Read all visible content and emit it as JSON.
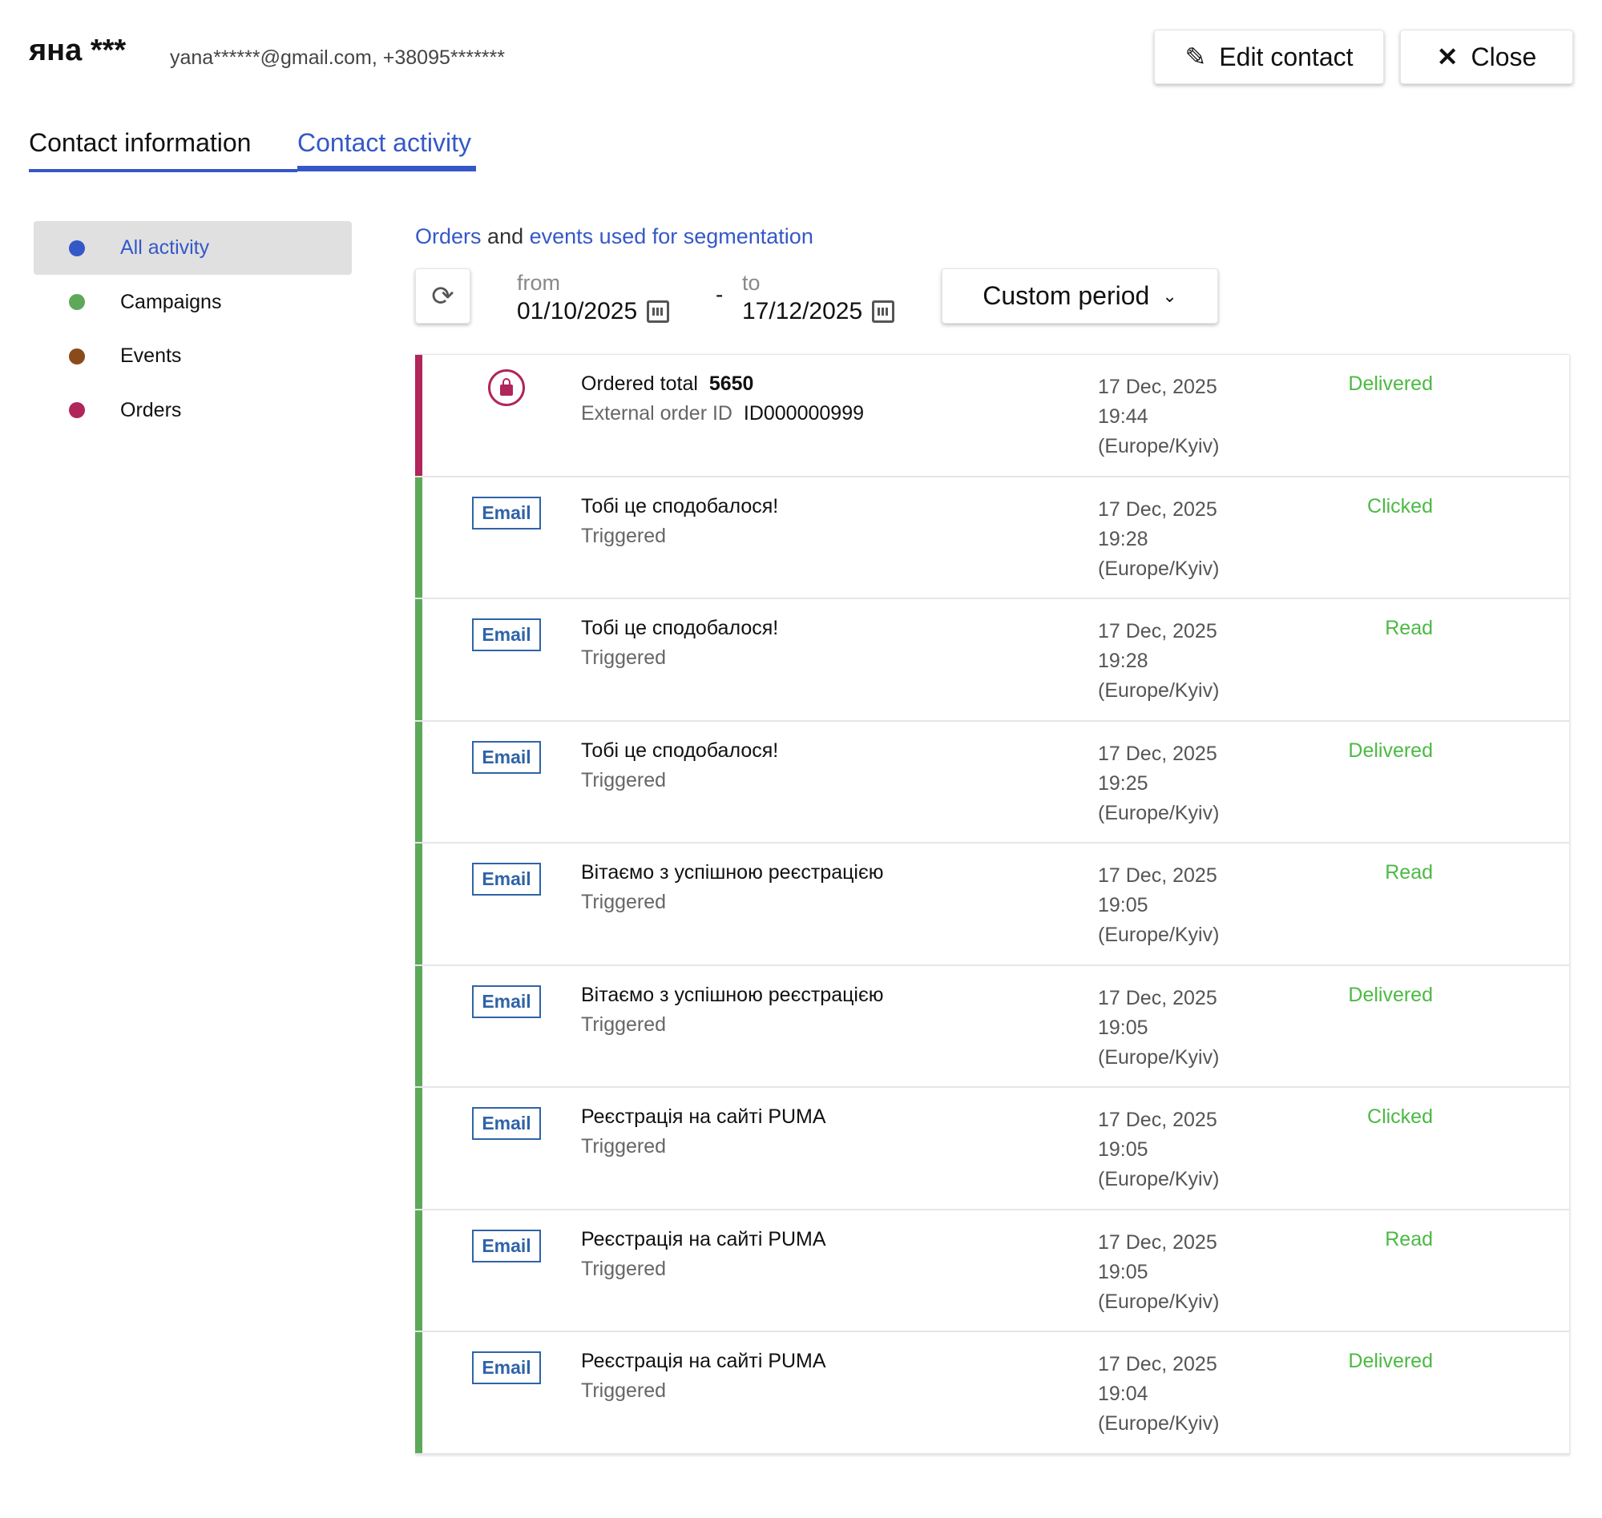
{
  "header": {
    "name": "яна ***",
    "contact": "yana******@gmail.com, +38095*******",
    "edit_label": "Edit contact",
    "close_label": "Close"
  },
  "tabs": [
    {
      "label": "Contact information"
    },
    {
      "label": "Contact activity",
      "active": true
    }
  ],
  "sidebar": {
    "items": [
      {
        "label": "All activity",
        "color": "#3558c8",
        "active": true
      },
      {
        "label": "Campaigns",
        "color": "#5ea85a"
      },
      {
        "label": "Events",
        "color": "#8a4a1c"
      },
      {
        "label": "Orders",
        "color": "#b0255a"
      }
    ]
  },
  "filter": {
    "orders_link": "Orders",
    "and": "and",
    "events_link": "events used for segmentation",
    "from_label": "from",
    "from_value": "01/10/2025",
    "to_label": "to",
    "to_value": "17/12/2025",
    "period": "Custom period"
  },
  "activity": [
    {
      "type": "order",
      "title": "Ordered total",
      "total": "5650",
      "sub": "External order ID",
      "order_id": "ID000000999",
      "date": "17 Dec, 2025",
      "time": "19:44 (Europe/Kyiv)",
      "status": "Delivered"
    },
    {
      "type": "email",
      "badge": "Email",
      "title": "Тобі це сподобалося!",
      "sub": "Triggered",
      "date": "17 Dec, 2025",
      "time": "19:28 (Europe/Kyiv)",
      "status": "Clicked"
    },
    {
      "type": "email",
      "badge": "Email",
      "title": "Тобі це сподобалося!",
      "sub": "Triggered",
      "date": "17 Dec, 2025",
      "time": "19:28 (Europe/Kyiv)",
      "status": "Read"
    },
    {
      "type": "email",
      "badge": "Email",
      "title": "Тобі це сподобалося!",
      "sub": "Triggered",
      "date": "17 Dec, 2025",
      "time": "19:25 (Europe/Kyiv)",
      "status": "Delivered"
    },
    {
      "type": "email",
      "badge": "Email",
      "title": "Вітаємо з успішною реєстрацією",
      "sub": "Triggered",
      "date": "17 Dec, 2025",
      "time": "19:05 (Europe/Kyiv)",
      "status": "Read"
    },
    {
      "type": "email",
      "badge": "Email",
      "title": "Вітаємо з успішною реєстрацією",
      "sub": "Triggered",
      "date": "17 Dec, 2025",
      "time": "19:05 (Europe/Kyiv)",
      "status": "Delivered"
    },
    {
      "type": "email",
      "badge": "Email",
      "title": "Реєстрація на сайті PUMA",
      "sub": "Triggered",
      "date": "17 Dec, 2025",
      "time": "19:05 (Europe/Kyiv)",
      "status": "Clicked"
    },
    {
      "type": "email",
      "badge": "Email",
      "title": "Реєстрація на сайті PUMA",
      "sub": "Triggered",
      "date": "17 Dec, 2025",
      "time": "19:05 (Europe/Kyiv)",
      "status": "Read"
    },
    {
      "type": "email",
      "badge": "Email",
      "title": "Реєстрація на сайті PUMA",
      "sub": "Triggered",
      "date": "17 Dec, 2025",
      "time": "19:04 (Europe/Kyiv)",
      "status": "Delivered"
    }
  ],
  "colors": {
    "accent": "#3558c8",
    "status": "#4cb944",
    "order_bar": "#b0255a",
    "campaign_bar": "#5ea85a"
  }
}
